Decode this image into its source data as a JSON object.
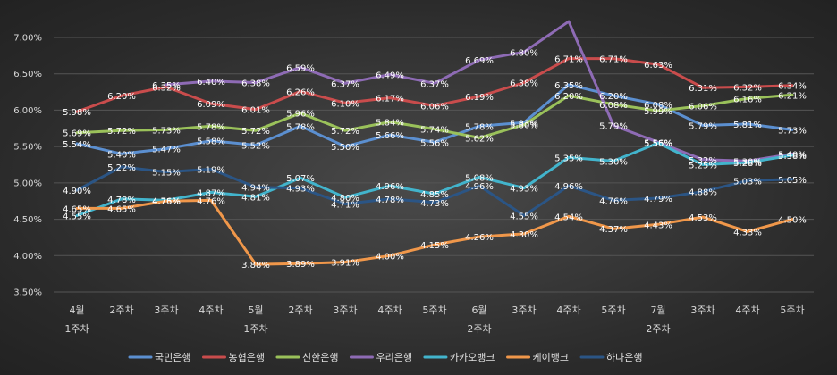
{
  "chart_data": {
    "type": "line",
    "title": "",
    "xlabel": "",
    "ylabel": "",
    "ylim": [
      3.5,
      7.0
    ],
    "yticks": [
      "7.00%",
      "6.50%",
      "6.00%",
      "5.50%",
      "5.00%",
      "4.50%",
      "4.00%",
      "3.50%"
    ],
    "ytick_values": [
      7.0,
      6.5,
      6.0,
      5.5,
      5.0,
      4.5,
      4.0,
      3.5
    ],
    "grid": true,
    "legend_position": "bottom",
    "categories": [
      [
        "4월",
        "1주차"
      ],
      [
        "2주차"
      ],
      [
        "3주차"
      ],
      [
        "4주차"
      ],
      [
        "5월",
        "1주차"
      ],
      [
        "2주차"
      ],
      [
        "3주차"
      ],
      [
        "4주차"
      ],
      [
        "5주차"
      ],
      [
        "6월",
        "2주차"
      ],
      [
        "3주차"
      ],
      [
        "4주차"
      ],
      [
        "5주차"
      ],
      [
        "7월",
        "2주차"
      ],
      [
        "3주차"
      ],
      [
        "4주차"
      ],
      [
        "5주차"
      ]
    ],
    "series": [
      {
        "name": "국민은행",
        "color": "#5b8fd0",
        "values": [
          5.54,
          5.4,
          5.47,
          5.58,
          5.52,
          5.78,
          5.5,
          5.66,
          5.56,
          5.78,
          5.83,
          6.35,
          6.2,
          6.08,
          5.79,
          5.81,
          5.73
        ],
        "labels": [
          "5.54%",
          "5.40%",
          "5.47%",
          "5.58%",
          "5.52%",
          "5.78%",
          "5.50%",
          "5.66%",
          "5.56%",
          "5.78%",
          "5.83%",
          "6.35%",
          "6.20%",
          "6.08%",
          "5.79%",
          "5.81%",
          "5.73%"
        ]
      },
      {
        "name": "농협은행",
        "color": "#c94c4c",
        "values": [
          5.98,
          6.2,
          6.32,
          6.09,
          6.01,
          6.26,
          6.1,
          6.17,
          6.06,
          6.19,
          6.38,
          6.71,
          6.71,
          6.63,
          6.31,
          6.32,
          6.34
        ],
        "labels": [
          "5.98%",
          "6.20%",
          "6.32%",
          "6.09%",
          "6.01%",
          "6.26%",
          "6.10%",
          "6.17%",
          "6.06%",
          "6.19%",
          "6.38%",
          "6.71%",
          "6.71%",
          "6.63%",
          "6.31%",
          "6.32%",
          "6.34%"
        ]
      },
      {
        "name": "신한은행",
        "color": "#9ac15a",
        "values": [
          5.69,
          5.72,
          5.73,
          5.78,
          5.72,
          5.96,
          5.72,
          5.84,
          5.74,
          5.62,
          5.8,
          6.2,
          6.08,
          5.99,
          6.06,
          6.16,
          6.21
        ],
        "labels": [
          "5.69%",
          "5.72%",
          "5.73%",
          "5.78%",
          "5.72%",
          "5.96%",
          "5.72%",
          "5.84%",
          "5.74%",
          "5.62%",
          "5.80%",
          "6.20%",
          "6.08%",
          "5.99%",
          "6.06%",
          "6.16%",
          "6.21%"
        ]
      },
      {
        "name": "우리은행",
        "color": "#8e6bb5",
        "values": [
          null,
          null,
          6.35,
          6.4,
          6.38,
          6.59,
          6.37,
          6.49,
          6.37,
          6.69,
          6.8,
          7.22,
          5.79,
          5.56,
          5.32,
          5.3,
          5.4
        ],
        "labels": [
          "",
          "",
          "6.35%",
          "6.40%",
          "6.38%",
          "6.59%",
          "6.37%",
          "6.49%",
          "6.37%",
          "6.69%",
          "6.80%",
          "",
          "5.79%",
          "5.56%",
          "5.32%",
          "5.30%",
          "5.40%"
        ]
      },
      {
        "name": "카카오뱅크",
        "color": "#42b4cc",
        "values": [
          4.55,
          4.78,
          4.76,
          4.87,
          4.81,
          5.07,
          4.8,
          4.96,
          4.85,
          5.08,
          4.93,
          5.35,
          5.3,
          5.55,
          5.25,
          5.28,
          5.38
        ],
        "labels": [
          "4.55%",
          "4.78%",
          "4.76%",
          "4.87%",
          "4.81%",
          "5.07%",
          "4.80%",
          "4.96%",
          "4.85%",
          "5.08%",
          "4.93%",
          "5.35%",
          "5.30%",
          "5.55%",
          "5.25%",
          "5.28%",
          "5.38%"
        ]
      },
      {
        "name": "케이뱅크",
        "color": "#f0974a",
        "values": [
          4.65,
          4.65,
          4.75,
          4.76,
          3.88,
          3.89,
          3.91,
          4.0,
          4.15,
          4.26,
          4.3,
          4.54,
          4.37,
          4.43,
          4.53,
          4.33,
          4.5
        ],
        "labels": [
          "4.65%",
          "4.65%",
          "4.75%",
          "4.76%",
          "3.88%",
          "3.89%",
          "3.91%",
          "4.00%",
          "4.15%",
          "4.26%",
          "4.30%",
          "4.54%",
          "4.37%",
          "4.43%",
          "4.53%",
          "4.33%",
          "4.50%"
        ]
      },
      {
        "name": "하나은행",
        "color": "#2b5585",
        "values": [
          4.9,
          5.22,
          5.15,
          5.19,
          4.94,
          4.93,
          4.71,
          4.78,
          4.73,
          4.96,
          4.55,
          4.96,
          4.76,
          4.79,
          4.88,
          5.03,
          5.05
        ],
        "labels": [
          "4.90%",
          "5.22%",
          "5.15%",
          "5.19%",
          "4.94%",
          "4.93%",
          "4.71%",
          "4.78%",
          "4.73%",
          "4.96%",
          "4.55%",
          "4.96%",
          "4.76%",
          "4.79%",
          "4.88%",
          "5.03%",
          "5.05%"
        ]
      }
    ]
  }
}
